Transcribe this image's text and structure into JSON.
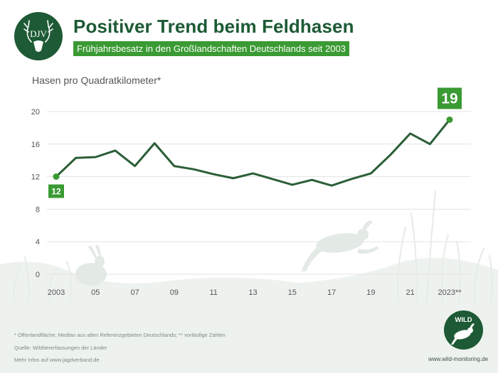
{
  "header": {
    "logo_text": "DJV",
    "title": "Positiver Trend beim Feldhasen",
    "subtitle": "Frühjahrsbesatz in den Großlandschaften Deutschlands seit 2003"
  },
  "chart_data": {
    "type": "line",
    "title": "Positiver Trend beim Feldhasen",
    "subtitle": "Frühjahrsbesatz in den Großlandschaften Deutschlands seit 2003",
    "ylabel": "Hasen pro Quadratkilometer*",
    "xlabel": "",
    "ylim": [
      0,
      20
    ],
    "yticks": [
      0,
      4,
      8,
      12,
      16,
      20
    ],
    "grid": true,
    "x": [
      2003,
      2004,
      2005,
      2006,
      2007,
      2008,
      2009,
      2010,
      2011,
      2012,
      2013,
      2014,
      2015,
      2016,
      2017,
      2018,
      2019,
      2020,
      2021,
      2022,
      2023
    ],
    "xtick_labels": [
      "2003",
      "05",
      "07",
      "09",
      "11",
      "13",
      "15",
      "17",
      "19",
      "21",
      "2023**"
    ],
    "xtick_years": [
      2003,
      2005,
      2007,
      2009,
      2011,
      2013,
      2015,
      2017,
      2019,
      2021,
      2023
    ],
    "series": [
      {
        "values": [
          12,
          14.3,
          14.4,
          15.2,
          13.3,
          16.1,
          13.3,
          12.9,
          12.3,
          11.8,
          12.4,
          11.7,
          11.0,
          11.6,
          10.9,
          11.7,
          12.4,
          14.7,
          17.3,
          16.0,
          19
        ]
      }
    ],
    "annotations": [
      {
        "year": 2003,
        "label": "12"
      },
      {
        "year": 2023,
        "label": "19"
      }
    ]
  },
  "colors": {
    "line": "#2b5e37",
    "accent": "#3a9a33",
    "brand": "#1d5a35",
    "grid": "#e3e3e3",
    "footer": "#edf2ee"
  },
  "footer": {
    "note": "* Offenlandfläche; Median aus allen Referenzgebieten Deutschlands; ** vorläufige Zahlen",
    "source": "Quelle: Wildtiererfassungen der Länder",
    "more": "Mehr Infos auf www.jagdverband.de",
    "wild_label": "WILD",
    "wild_url": "www.wild-monitoring.de"
  },
  "icons": [
    "deer-head-icon",
    "hare-icon",
    "running-hare-icon"
  ]
}
